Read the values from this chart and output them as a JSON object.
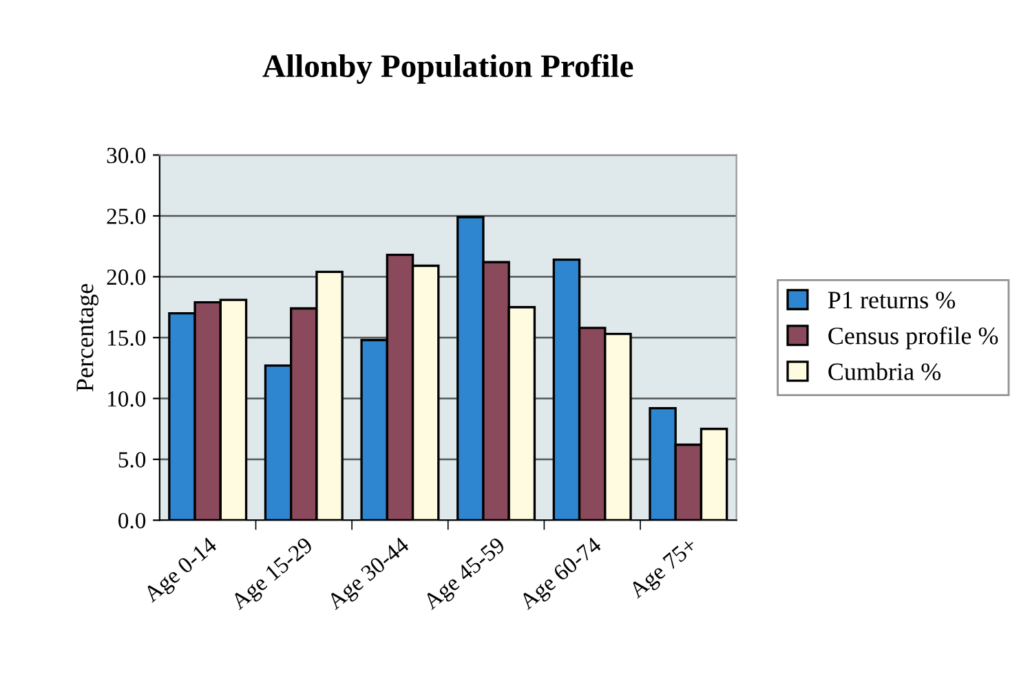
{
  "chart_data": {
    "type": "bar",
    "title": "Allonby Population Profile",
    "ylabel": "Percentage",
    "categories": [
      "Age 0-14",
      "Age 15-29",
      "Age 30-44",
      "Age 45-59",
      "Age 60-74",
      "Age 75+"
    ],
    "series": [
      {
        "name": "P1 returns %",
        "color": "#2e86d0",
        "values": [
          17.0,
          12.7,
          14.8,
          24.9,
          21.4,
          9.2
        ]
      },
      {
        "name": "Census profile %",
        "color": "#8b4a5c",
        "values": [
          17.9,
          17.4,
          21.8,
          21.2,
          15.8,
          6.2
        ]
      },
      {
        "name": "Cumbria %",
        "color": "#fffbe0",
        "values": [
          18.1,
          20.4,
          20.9,
          17.5,
          15.3,
          7.5
        ]
      }
    ],
    "ylim": [
      0,
      30
    ],
    "yticks": [
      {
        "value": 0,
        "label": "0.0"
      },
      {
        "value": 5,
        "label": "5.0"
      },
      {
        "value": 10,
        "label": "10.0"
      },
      {
        "value": 15,
        "label": "15.0"
      },
      {
        "value": 20,
        "label": "20.0"
      },
      {
        "value": 25,
        "label": "25.0"
      },
      {
        "value": 30,
        "label": "30.0"
      }
    ],
    "grid": "y",
    "legend": "right"
  }
}
